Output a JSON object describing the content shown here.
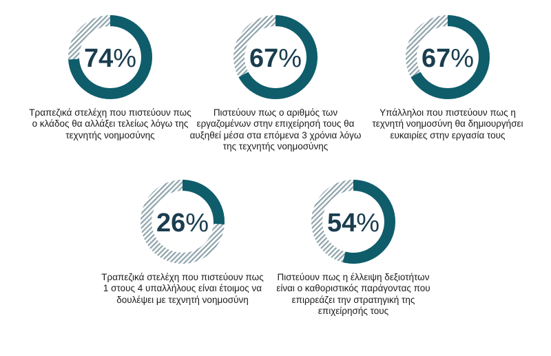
{
  "colors": {
    "accent": "#0f5d6b",
    "hatch": "#8ea3ab",
    "text": "#1a3d4f"
  },
  "chart_data": {
    "type": "donut",
    "items": [
      {
        "value": 74,
        "label": "74",
        "unit": "%",
        "caption": "Τραπεζικά στελέχη που πιστεύουν πως ο κλάδος θα αλλάξει τελείως λόγω της τεχνητής νοημοσύνης"
      },
      {
        "value": 67,
        "label": "67",
        "unit": "%",
        "caption": "Πιστεύουν πως ο αριθμός των εργαζομένων στην επιχείρησή τους θα αυξηθεί μέσα στα επόμενα 3 χρόνια λόγω της τεχνητής νοημοσύνης"
      },
      {
        "value": 67,
        "label": "67",
        "unit": "%",
        "caption": "Υπάλληλοι που πιστεύουν πως η τεχνητή νοημοσύνη θα δημιουργήσει ευκαιρίες στην εργασία τους"
      },
      {
        "value": 26,
        "label": "26",
        "unit": "%",
        "caption": "Τραπεζικά στελέχη που πιστεύουν πως 1 στους 4 υπαλλήλους είναι έτοιμος να δουλέψει με τεχνητή νοημοσύνη"
      },
      {
        "value": 54,
        "label": "54",
        "unit": "%",
        "caption": "Πιστεύουν πως η έλλειψη δεξιοτήτων είναι ο καθοριστικός παράγοντας που επιρρεάζει την στρατηγική της επιχείρησής τους"
      }
    ]
  }
}
